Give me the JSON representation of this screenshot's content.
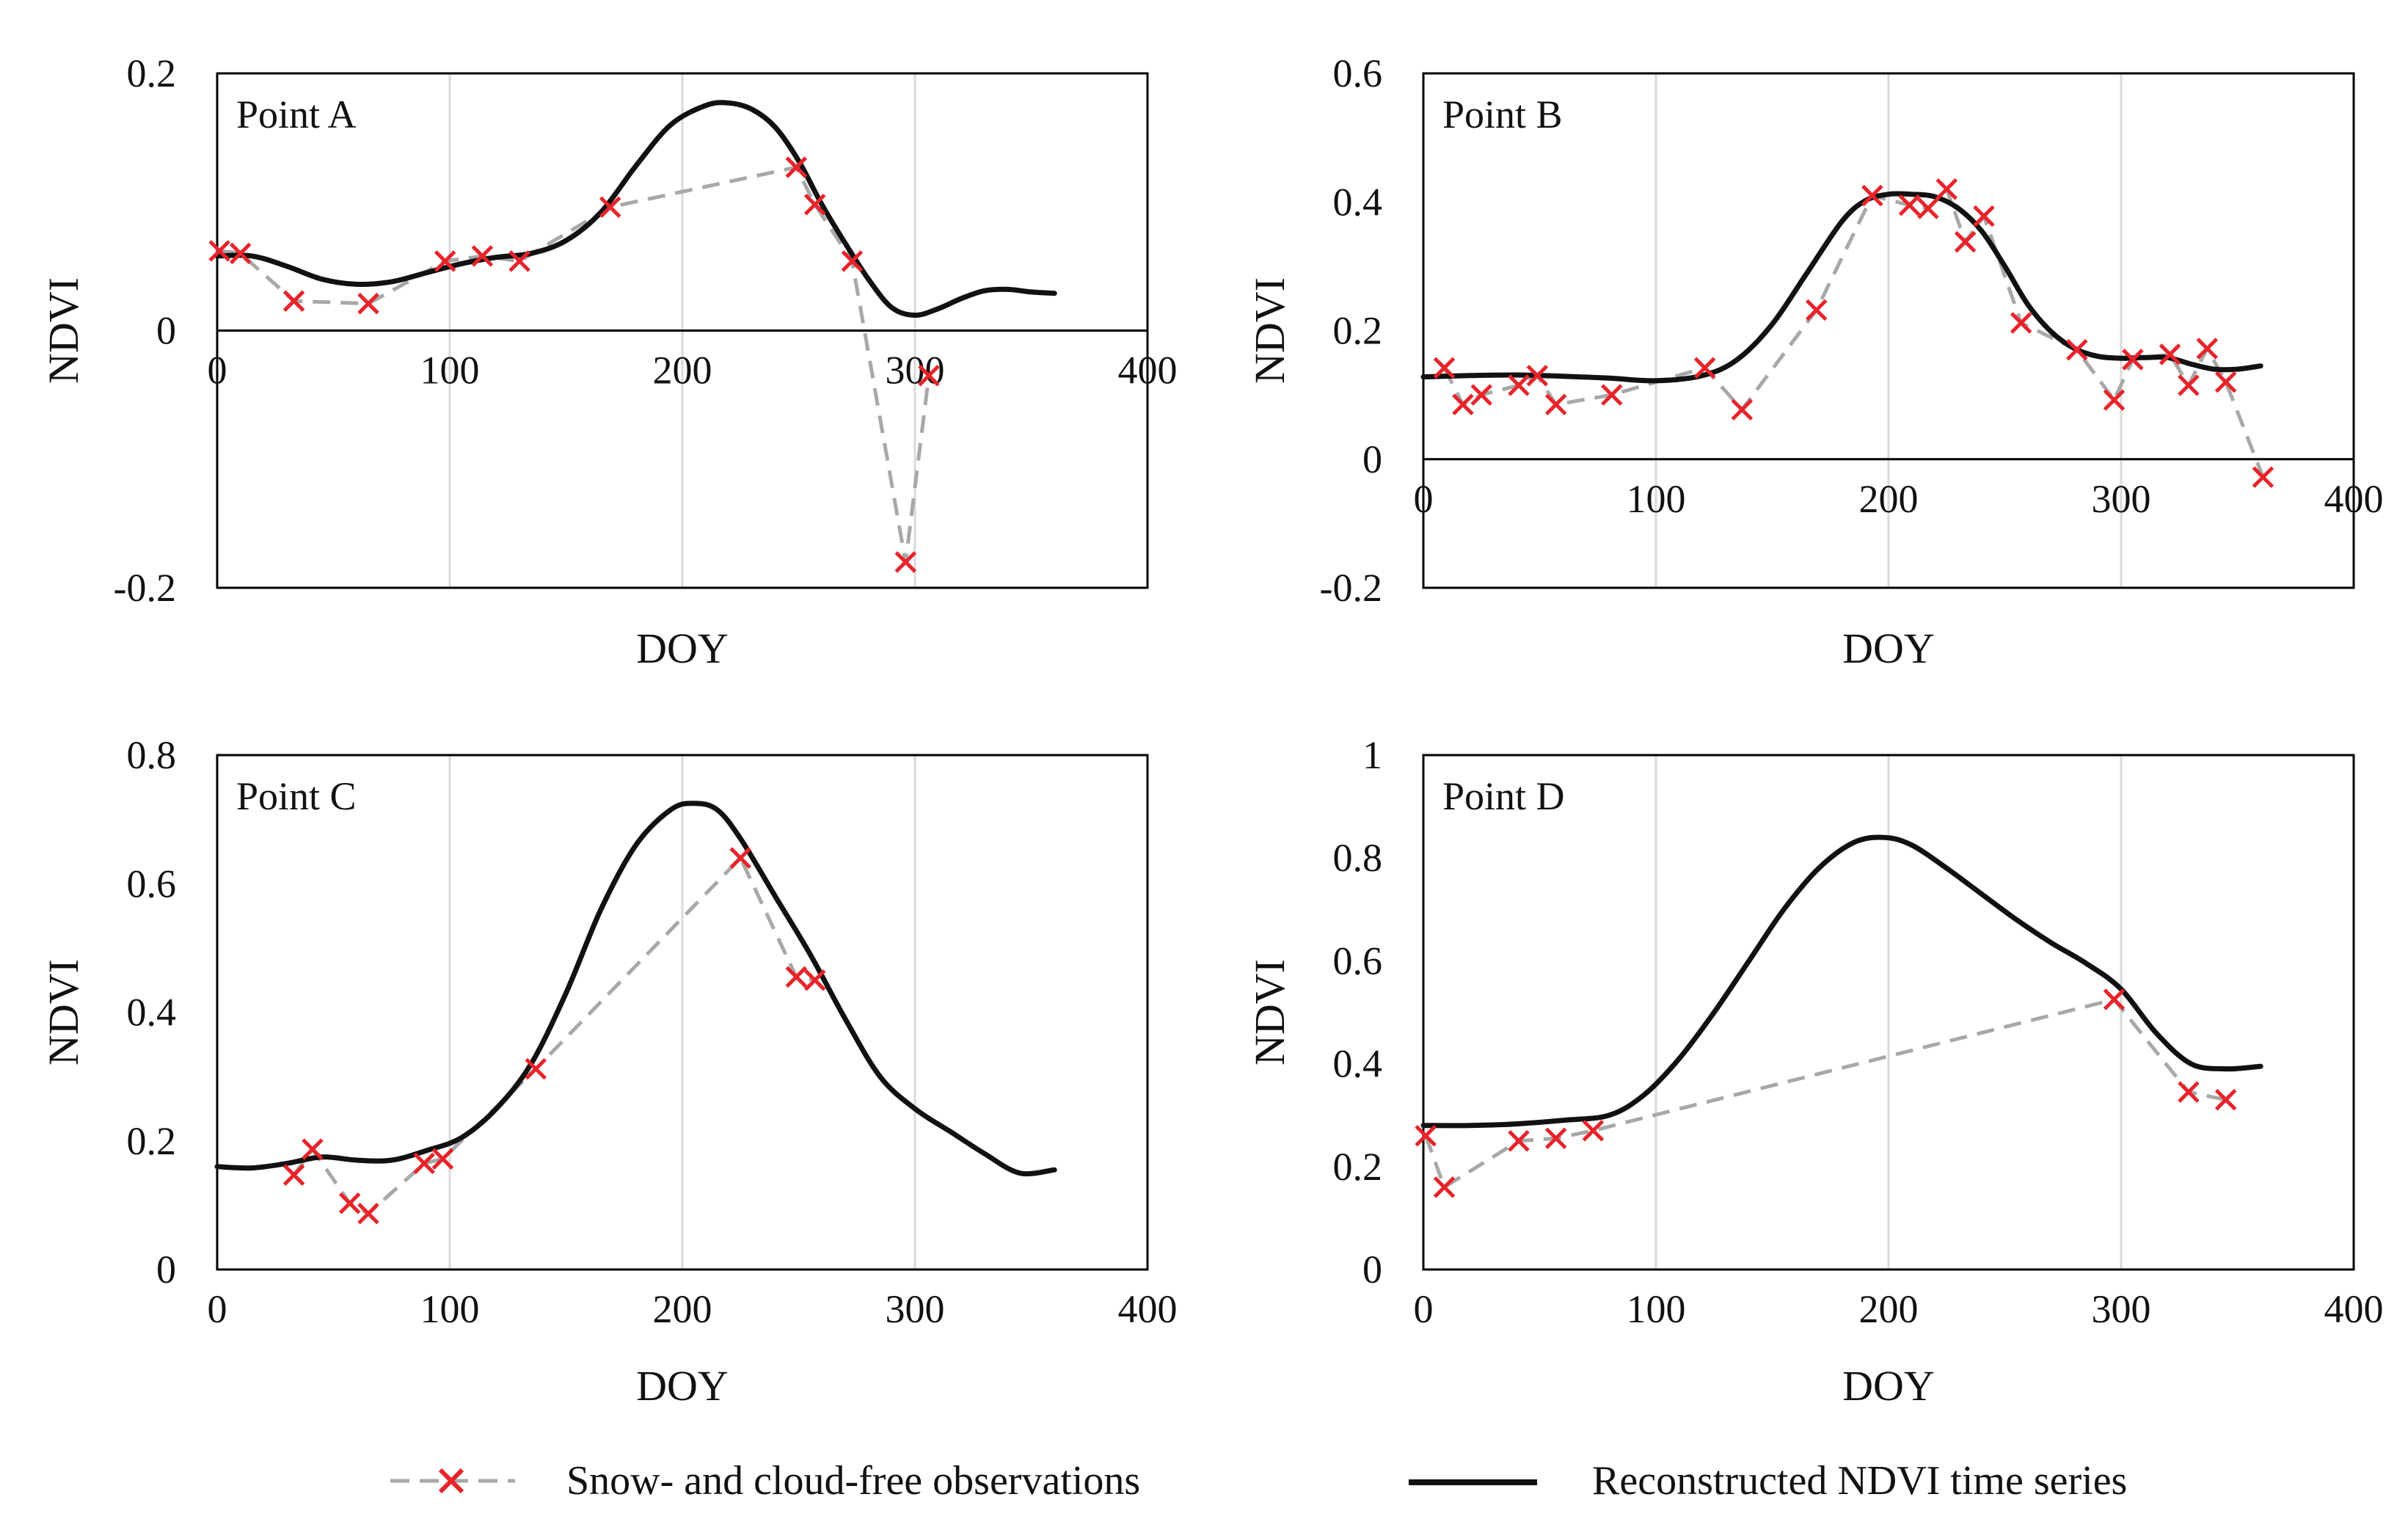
{
  "legend": {
    "observations_label": "Snow- and cloud-free observations",
    "reconstructed_label": "Reconstructed NDVI  time series"
  },
  "colors": {
    "observation_marker": "#e8232a",
    "observation_line": "#a8a8a8",
    "reconstructed_line": "#111111",
    "grid": "#d9d9d9",
    "frame": "#000000"
  },
  "chart_data": [
    {
      "type": "line",
      "panel_label": "Point A",
      "xlabel": "DOY",
      "ylabel": "NDVI",
      "xlim": [
        0,
        400
      ],
      "ylim": [
        -0.2,
        0.2
      ],
      "x_ticks": [
        0,
        100,
        200,
        300,
        400
      ],
      "y_ticks": [
        0.2,
        0,
        -0.2
      ],
      "y_tick_labels": [
        "0.2",
        "0",
        "-0.2"
      ],
      "x_grid": [
        100,
        200,
        300
      ],
      "series": [
        {
          "name": "Snow- and cloud-free observations",
          "style": "dashed-with-x-markers",
          "x": [
            1,
            10,
            33,
            65,
            98,
            114,
            130,
            169,
            249,
            257,
            273,
            296,
            306
          ],
          "y": [
            0.062,
            0.06,
            0.023,
            0.021,
            0.054,
            0.058,
            0.054,
            0.096,
            0.127,
            0.098,
            0.054,
            -0.18,
            -0.035
          ]
        },
        {
          "name": "Reconstructed NDVI  time series",
          "style": "solid",
          "x": [
            0,
            15,
            30,
            45,
            60,
            75,
            90,
            105,
            120,
            135,
            150,
            165,
            180,
            195,
            210,
            220,
            230,
            240,
            250,
            260,
            270,
            280,
            290,
            300,
            310,
            320,
            330,
            340,
            350,
            360
          ],
          "y": [
            0.058,
            0.058,
            0.05,
            0.04,
            0.036,
            0.038,
            0.045,
            0.052,
            0.057,
            0.06,
            0.07,
            0.092,
            0.128,
            0.16,
            0.175,
            0.177,
            0.172,
            0.158,
            0.132,
            0.098,
            0.068,
            0.04,
            0.018,
            0.012,
            0.017,
            0.025,
            0.031,
            0.032,
            0.03,
            0.029
          ]
        }
      ]
    },
    {
      "type": "line",
      "panel_label": "Point B",
      "xlabel": "DOY",
      "ylabel": "NDVI",
      "xlim": [
        0,
        400
      ],
      "ylim": [
        -0.2,
        0.6
      ],
      "x_ticks": [
        0,
        100,
        200,
        300,
        400
      ],
      "y_ticks": [
        0.6,
        0.4,
        0.2,
        0,
        -0.2
      ],
      "y_tick_labels": [
        "0.6",
        "0.4",
        "0.2",
        "0",
        "-0.2"
      ],
      "x_grid": [
        100,
        200,
        300
      ],
      "series": [
        {
          "name": "Snow- and cloud-free observations",
          "style": "dashed-with-x-markers",
          "x": [
            9,
            17,
            25,
            41,
            49,
            57,
            81,
            121,
            137,
            169,
            193,
            209,
            217,
            225,
            233,
            241,
            257,
            281,
            297,
            305,
            321,
            329,
            337,
            345,
            361
          ],
          "y": [
            0.142,
            0.085,
            0.1,
            0.115,
            0.13,
            0.085,
            0.1,
            0.142,
            0.077,
            0.232,
            0.41,
            0.395,
            0.39,
            0.42,
            0.338,
            0.378,
            0.212,
            0.17,
            0.092,
            0.155,
            0.163,
            0.115,
            0.172,
            0.12,
            -0.028
          ]
        },
        {
          "name": "Reconstructed NDVI  time series",
          "style": "solid",
          "x": [
            0,
            20,
            40,
            60,
            80,
            100,
            120,
            135,
            150,
            165,
            180,
            190,
            200,
            210,
            220,
            230,
            240,
            250,
            260,
            270,
            280,
            290,
            300,
            310,
            320,
            330,
            340,
            350,
            360
          ],
          "y": [
            0.128,
            0.13,
            0.131,
            0.129,
            0.126,
            0.122,
            0.13,
            0.155,
            0.21,
            0.29,
            0.37,
            0.402,
            0.412,
            0.412,
            0.408,
            0.39,
            0.355,
            0.3,
            0.24,
            0.198,
            0.172,
            0.16,
            0.157,
            0.158,
            0.158,
            0.148,
            0.14,
            0.14,
            0.145
          ]
        }
      ]
    },
    {
      "type": "line",
      "panel_label": "Point C",
      "xlabel": "DOY",
      "ylabel": "NDVI",
      "xlim": [
        0,
        400
      ],
      "ylim": [
        0,
        0.8
      ],
      "x_ticks": [
        0,
        100,
        200,
        300,
        400
      ],
      "y_ticks": [
        0.8,
        0.6,
        0.4,
        0.2,
        0
      ],
      "y_tick_labels": [
        "0.8",
        "0.6",
        "0.4",
        "0.2",
        "0"
      ],
      "x_grid": [
        100,
        200,
        300
      ],
      "series": [
        {
          "name": "Snow- and cloud-free observations",
          "style": "dashed-with-x-markers",
          "x": [
            33,
            41,
            57,
            65,
            89,
            97,
            137,
            225,
            249,
            257
          ],
          "y": [
            0.147,
            0.187,
            0.103,
            0.087,
            0.165,
            0.172,
            0.312,
            0.64,
            0.455,
            0.45
          ]
        },
        {
          "name": "Reconstructed NDVI  time series",
          "style": "solid",
          "x": [
            0,
            15,
            30,
            45,
            60,
            75,
            90,
            105,
            120,
            135,
            150,
            165,
            180,
            195,
            205,
            215,
            225,
            240,
            255,
            270,
            285,
            300,
            315,
            330,
            345,
            360
          ],
          "y": [
            0.16,
            0.158,
            0.165,
            0.175,
            0.17,
            0.17,
            0.185,
            0.205,
            0.25,
            0.32,
            0.43,
            0.56,
            0.66,
            0.715,
            0.725,
            0.715,
            0.67,
            0.58,
            0.49,
            0.39,
            0.3,
            0.25,
            0.215,
            0.18,
            0.15,
            0.155
          ]
        }
      ]
    },
    {
      "type": "line",
      "panel_label": "Point D",
      "xlabel": "DOY",
      "ylabel": "NDVI",
      "xlim": [
        0,
        400
      ],
      "ylim": [
        0,
        1
      ],
      "x_ticks": [
        0,
        100,
        200,
        300,
        400
      ],
      "y_ticks": [
        1,
        0.8,
        0.6,
        0.4,
        0.2,
        0
      ],
      "y_tick_labels": [
        "1",
        "0.8",
        "0.6",
        "0.4",
        "0.2",
        "0"
      ],
      "x_grid": [
        100,
        200,
        300
      ],
      "series": [
        {
          "name": "Snow- and cloud-free observations",
          "style": "dashed-with-x-markers",
          "x": [
            1,
            9,
            41,
            57,
            73,
            297,
            329,
            345
          ],
          "y": [
            0.26,
            0.16,
            0.25,
            0.255,
            0.27,
            0.525,
            0.345,
            0.33
          ]
        },
        {
          "name": "Reconstructed NDVI  time series",
          "style": "solid",
          "x": [
            0,
            20,
            40,
            60,
            80,
            95,
            110,
            125,
            140,
            155,
            170,
            185,
            198,
            210,
            225,
            240,
            255,
            270,
            285,
            300,
            315,
            330,
            345,
            360
          ],
          "y": [
            0.28,
            0.28,
            0.283,
            0.29,
            0.3,
            0.34,
            0.41,
            0.5,
            0.6,
            0.7,
            0.78,
            0.83,
            0.84,
            0.825,
            0.78,
            0.73,
            0.68,
            0.635,
            0.595,
            0.545,
            0.46,
            0.4,
            0.39,
            0.395
          ]
        }
      ]
    }
  ]
}
